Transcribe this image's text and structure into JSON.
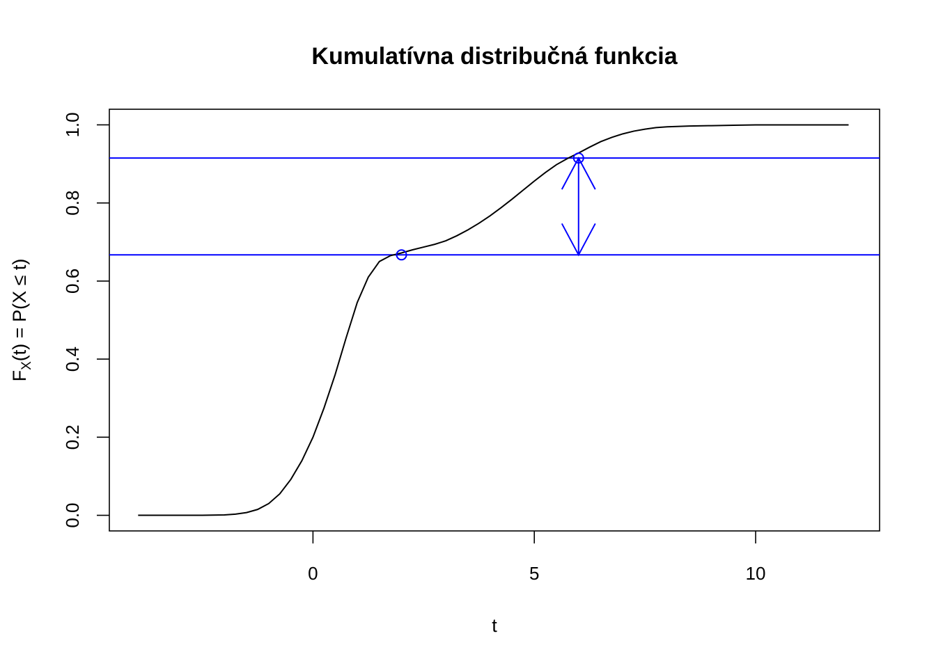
{
  "chart_data": {
    "type": "line",
    "title": "Kumulatívna distribučná funkcia",
    "xlabel": "t",
    "ylabel": {
      "prefix": "F",
      "subscript": "X",
      "suffix": "(t) = P(X ≤ t)"
    },
    "xlim": [
      -4.6,
      12.8
    ],
    "ylim": [
      -0.04,
      1.04
    ],
    "xticks": [
      0,
      5,
      10
    ],
    "xtick_labels": [
      "0",
      "5",
      "10"
    ],
    "yticks": [
      0.0,
      0.2,
      0.4,
      0.6,
      0.8,
      1.0
    ],
    "ytick_labels": [
      "0.0",
      "0.2",
      "0.4",
      "0.6",
      "0.8",
      "1.0"
    ],
    "series": [
      {
        "color": "#000000",
        "x": [
          -3.95,
          -3.0,
          -2.5,
          -2.0,
          -1.75,
          -1.5,
          -1.25,
          -1.0,
          -0.75,
          -0.5,
          -0.25,
          0.0,
          0.25,
          0.5,
          0.75,
          1.0,
          1.25,
          1.5,
          1.75,
          2.0,
          2.25,
          2.5,
          2.75,
          3.0,
          3.25,
          3.5,
          3.75,
          4.0,
          4.25,
          4.5,
          4.75,
          5.0,
          5.25,
          5.5,
          5.75,
          6.0,
          6.25,
          6.5,
          6.75,
          7.0,
          7.25,
          7.5,
          7.75,
          8.0,
          8.5,
          9.0,
          9.5,
          10.0,
          10.5,
          11.0,
          11.5,
          12.1
        ],
        "y": [
          0.0,
          0.0,
          0.0,
          0.001,
          0.003,
          0.007,
          0.015,
          0.03,
          0.055,
          0.092,
          0.14,
          0.2,
          0.275,
          0.36,
          0.455,
          0.545,
          0.61,
          0.65,
          0.665,
          0.672,
          0.68,
          0.687,
          0.694,
          0.703,
          0.716,
          0.731,
          0.748,
          0.767,
          0.788,
          0.81,
          0.833,
          0.856,
          0.878,
          0.898,
          0.914,
          0.928,
          0.943,
          0.957,
          0.968,
          0.977,
          0.984,
          0.989,
          0.993,
          0.995,
          0.997,
          0.998,
          0.999,
          1.0,
          1.0,
          1.0,
          1.0,
          1.0
        ]
      }
    ],
    "hlines": [
      0.915,
      0.667
    ],
    "hline_color": "#0000ff",
    "points": [
      {
        "x": 2.0,
        "y": 0.667
      },
      {
        "x": 6.0,
        "y": 0.915
      }
    ],
    "arrow": {
      "x": 6.0,
      "y_from": 0.667,
      "y_to": 0.915,
      "color": "#0000ff"
    }
  }
}
